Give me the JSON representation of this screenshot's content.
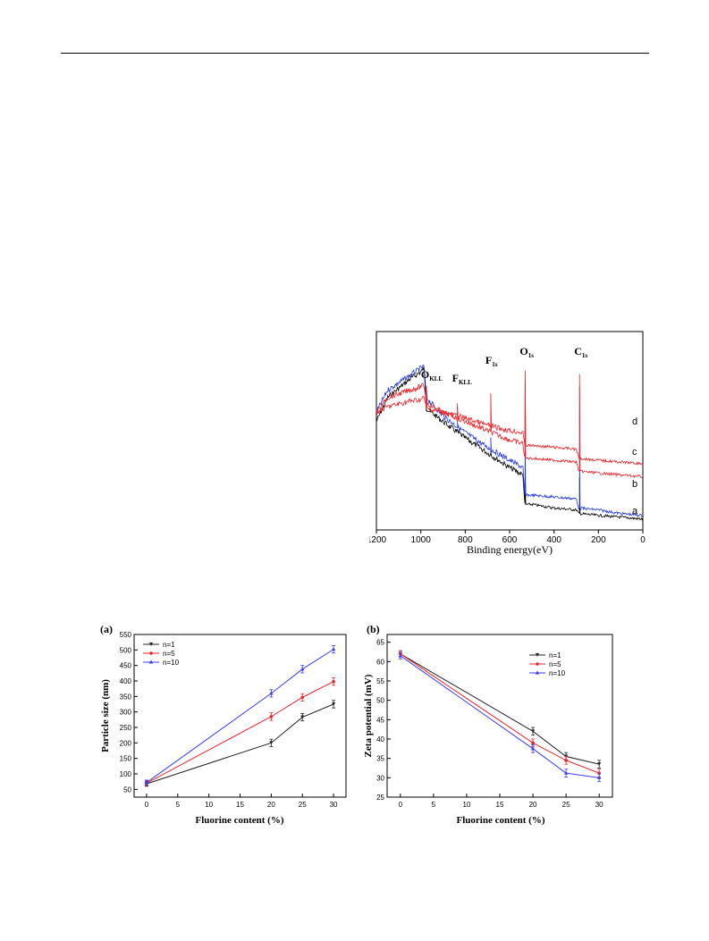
{
  "figures": {
    "xps": {
      "xlabel": "Binding energy(eV)",
      "peaks": [
        {
          "main": "O",
          "sub": "KLL",
          "x": 975
        },
        {
          "main": "F",
          "sub": "KLL",
          "x": 835
        },
        {
          "main": "F",
          "sub": "1s",
          "x": 685
        },
        {
          "main": "O",
          "sub": "1s",
          "x": 530
        },
        {
          "main": "C",
          "sub": "1s",
          "x": 285
        }
      ]
    },
    "size": {
      "panel": "(a)",
      "xlabel": "Fluorine content (%)",
      "ylabel": "Particle size (nm)"
    },
    "zeta": {
      "panel": "(b)",
      "xlabel": "Fluorine content (%)",
      "ylabel": "Zeta potential (mV)"
    }
  },
  "chart_data": [
    {
      "type": "line",
      "xlabel": "Binding energy(eV)",
      "xlim": [
        1200,
        0
      ],
      "x_reversed": true,
      "x_ticks": [
        1200,
        1000,
        800,
        600,
        400,
        200,
        0
      ],
      "series": [
        {
          "name": "a",
          "color": "#000000",
          "shape": [
            [
              1200,
              0.55
            ],
            [
              1150,
              0.68
            ],
            [
              1050,
              0.78
            ],
            [
              1000,
              0.82
            ],
            [
              985,
              0.84
            ],
            [
              975,
              0.62
            ],
            [
              900,
              0.55
            ],
            [
              800,
              0.46
            ],
            [
              700,
              0.38
            ],
            [
              600,
              0.3
            ],
            [
              540,
              0.26
            ],
            [
              532,
              0.1
            ],
            [
              500,
              0.1
            ],
            [
              400,
              0.08
            ],
            [
              300,
              0.07
            ],
            [
              288,
              0.05
            ],
            [
              200,
              0.04
            ],
            [
              100,
              0.03
            ],
            [
              0,
              0.02
            ]
          ]
        },
        {
          "name": "b",
          "color": "#1f35e0",
          "shape": [
            [
              1200,
              0.6
            ],
            [
              1150,
              0.72
            ],
            [
              1050,
              0.8
            ],
            [
              1000,
              0.84
            ],
            [
              985,
              0.85
            ],
            [
              975,
              0.68
            ],
            [
              900,
              0.58
            ],
            [
              800,
              0.49
            ],
            [
              700,
              0.41
            ],
            [
              600,
              0.34
            ],
            [
              540,
              0.3
            ],
            [
              532,
              0.15
            ],
            [
              500,
              0.15
            ],
            [
              400,
              0.14
            ],
            [
              300,
              0.13
            ],
            [
              288,
              0.08
            ],
            [
              200,
              0.07
            ],
            [
              100,
              0.05
            ],
            [
              0,
              0.04
            ]
          ]
        },
        {
          "name": "c",
          "color": "#e8262d",
          "shape": [
            [
              1200,
              0.6
            ],
            [
              1150,
              0.68
            ],
            [
              1050,
              0.72
            ],
            [
              1000,
              0.74
            ],
            [
              985,
              0.75
            ],
            [
              975,
              0.65
            ],
            [
              900,
              0.6
            ],
            [
              800,
              0.55
            ],
            [
              700,
              0.5
            ],
            [
              600,
              0.45
            ],
            [
              540,
              0.43
            ],
            [
              532,
              0.35
            ],
            [
              500,
              0.35
            ],
            [
              400,
              0.34
            ],
            [
              300,
              0.33
            ],
            [
              288,
              0.28
            ],
            [
              200,
              0.27
            ],
            [
              100,
              0.26
            ],
            [
              0,
              0.25
            ]
          ]
        },
        {
          "name": "d",
          "color": "#e8262d",
          "shape": [
            [
              1200,
              0.6
            ],
            [
              1150,
              0.63
            ],
            [
              1050,
              0.66
            ],
            [
              1000,
              0.67
            ],
            [
              985,
              0.68
            ],
            [
              975,
              0.62
            ],
            [
              900,
              0.6
            ],
            [
              800,
              0.57
            ],
            [
              700,
              0.53
            ],
            [
              600,
              0.5
            ],
            [
              540,
              0.49
            ],
            [
              532,
              0.42
            ],
            [
              500,
              0.42
            ],
            [
              400,
              0.41
            ],
            [
              300,
              0.4
            ],
            [
              288,
              0.35
            ],
            [
              200,
              0.34
            ],
            [
              100,
              0.33
            ],
            [
              0,
              0.32
            ]
          ]
        }
      ]
    },
    {
      "type": "line",
      "title": "(a)",
      "xlabel": "Fluorine content (%)",
      "ylabel": "Particle size (nm)",
      "xlim": [
        -2,
        32
      ],
      "ylim": [
        25,
        550
      ],
      "x_ticks": [
        0,
        5,
        10,
        15,
        20,
        25,
        30
      ],
      "y_ticks": [
        50,
        100,
        150,
        200,
        250,
        300,
        350,
        400,
        450,
        500,
        550
      ],
      "x": [
        0,
        20,
        25,
        30
      ],
      "legend": "top-left",
      "series": [
        {
          "name": "n=1",
          "color": "#222222",
          "values": [
            68,
            200,
            283,
            325
          ],
          "err": [
            8,
            12,
            12,
            12
          ]
        },
        {
          "name": "n=5",
          "color": "#e8262d",
          "values": [
            70,
            285,
            347,
            398
          ],
          "err": [
            8,
            12,
            12,
            12
          ]
        },
        {
          "name": "n=10",
          "color": "#3b3bf0",
          "values": [
            72,
            360,
            438,
            502
          ],
          "err": [
            8,
            12,
            12,
            12
          ]
        }
      ]
    },
    {
      "type": "line",
      "title": "(b)",
      "xlabel": "Fluorine content (%)",
      "ylabel": "Zeta potential (mV)",
      "xlim": [
        -2,
        32
      ],
      "ylim": [
        25,
        67
      ],
      "x_ticks": [
        0,
        5,
        10,
        15,
        20,
        25,
        30
      ],
      "y_ticks": [
        25,
        30,
        35,
        40,
        45,
        50,
        55,
        60,
        65
      ],
      "x": [
        0,
        20,
        25,
        30
      ],
      "legend": "top-right",
      "series": [
        {
          "name": "n=1",
          "color": "#222222",
          "values": [
            62,
            42,
            35.5,
            33.5
          ],
          "err": [
            0.8,
            1,
            1,
            1
          ]
        },
        {
          "name": "n=5",
          "color": "#e8262d",
          "values": [
            62,
            39,
            34.5,
            31.2
          ],
          "err": [
            0.8,
            1,
            1,
            1
          ]
        },
        {
          "name": "n=10",
          "color": "#3b3bf0",
          "values": [
            61.5,
            37.5,
            31.2,
            30
          ],
          "err": [
            0.8,
            1,
            1,
            1
          ]
        }
      ]
    }
  ]
}
